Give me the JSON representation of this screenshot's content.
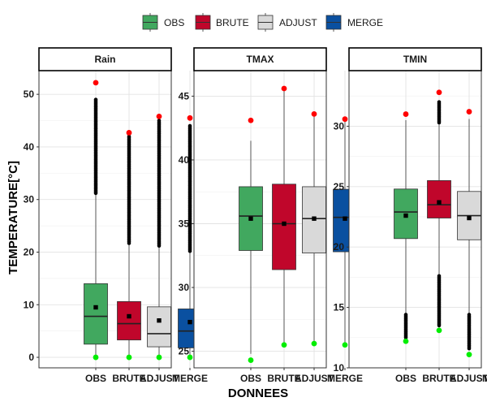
{
  "chart_data": {
    "type": "boxplot",
    "xlabel": "DONNEES",
    "ylabel": "TEMPERATURE[°C]",
    "categories": [
      "OBS",
      "BRUTE",
      "ADJUST",
      "MERGE"
    ],
    "legend": {
      "position": "top",
      "entries": [
        {
          "label": "OBS",
          "color": "#41a85f"
        },
        {
          "label": "BRUTE",
          "color": "#c0062b"
        },
        {
          "label": "ADJUST",
          "color": "#d9d9d9"
        },
        {
          "label": "MERGE",
          "color": "#0a50a0"
        }
      ]
    },
    "markers": {
      "max_color": "#ff0000",
      "min_color": "#00ee00",
      "mean_color": "#000000",
      "outlier_color": "#000000"
    },
    "grid": true,
    "panels": [
      {
        "title": "Rain",
        "ylim": [
          -2,
          54.5
        ],
        "yticks": [
          0,
          10,
          20,
          30,
          40,
          50
        ],
        "boxes": [
          {
            "name": "OBS",
            "q1": 2.5,
            "median": 7.8,
            "q3": 14.0,
            "whisker_low": 0,
            "whisker_high": 31.0,
            "mean": 9.5,
            "min": 0,
            "max": 52.2,
            "outlier_range": [
              31.2,
              49.0
            ]
          },
          {
            "name": "BRUTE",
            "q1": 3.3,
            "median": 6.4,
            "q3": 10.6,
            "whisker_low": 0,
            "whisker_high": 21.5,
            "mean": 7.8,
            "min": 0,
            "max": 42.7,
            "outlier_range": [
              21.7,
              42.0
            ]
          },
          {
            "name": "ADJUST",
            "q1": 2.0,
            "median": 4.5,
            "q3": 9.6,
            "whisker_low": 0,
            "whisker_high": 21.0,
            "mean": 7.0,
            "min": 0,
            "max": 45.8,
            "outlier_range": [
              21.2,
              45.0
            ]
          },
          {
            "name": "MERGE",
            "q1": 1.8,
            "median": 5.0,
            "q3": 9.2,
            "whisker_low": 0,
            "whisker_high": 20.0,
            "mean": 6.7,
            "min": 0,
            "max": 45.5,
            "outlier_range": [
              20.2,
              44.0
            ]
          }
        ]
      },
      {
        "title": "TMAX",
        "ylim": [
          23.7,
          47.0
        ],
        "yticks": [
          25,
          30,
          35,
          40,
          45
        ],
        "boxes": [
          {
            "name": "OBS",
            "q1": 32.9,
            "median": 35.6,
            "q3": 37.9,
            "whisker_low": 24.8,
            "whisker_high": 41.5,
            "mean": 35.4,
            "min": 24.3,
            "max": 43.1,
            "outlier_range": null
          },
          {
            "name": "BRUTE",
            "q1": 31.4,
            "median": 35.0,
            "q3": 38.1,
            "whisker_low": 25.5,
            "whisker_high": 45.5,
            "mean": 35.0,
            "min": 25.5,
            "max": 45.6,
            "outlier_range": null
          },
          {
            "name": "ADJUST",
            "q1": 32.7,
            "median": 35.4,
            "q3": 37.9,
            "whisker_low": 25.6,
            "whisker_high": 43.5,
            "mean": 35.4,
            "min": 25.6,
            "max": 43.6,
            "outlier_range": null
          },
          {
            "name": "MERGE",
            "q1": 32.8,
            "median": 35.5,
            "q3": 37.7,
            "whisker_low": 25.5,
            "whisker_high": 43.2,
            "mean": 35.4,
            "min": 25.5,
            "max": 43.2,
            "outlier_range": null
          }
        ]
      },
      {
        "title": "TMIN",
        "ylim": [
          10.0,
          34.6
        ],
        "yticks": [
          10,
          15,
          20,
          25,
          30
        ],
        "boxes": [
          {
            "name": "OBS",
            "q1": 20.7,
            "median": 22.9,
            "q3": 24.8,
            "whisker_low": 14.5,
            "whisker_high": 30.5,
            "mean": 22.6,
            "min": 12.2,
            "max": 31.0,
            "outlier_range": [
              12.5,
              14.4
            ]
          },
          {
            "name": "BRUTE",
            "q1": 22.4,
            "median": 23.5,
            "q3": 25.5,
            "whisker_low": 17.7,
            "whisker_high": 30.2,
            "mean": 23.7,
            "min": 13.1,
            "max": 32.8,
            "outlier_range": [
              13.5,
              17.6
            ],
            "outlier_range_high": [
              30.3,
              32.0
            ]
          },
          {
            "name": "ADJUST",
            "q1": 20.6,
            "median": 22.6,
            "q3": 24.6,
            "whisker_low": 14.5,
            "whisker_high": 30.6,
            "mean": 22.4,
            "min": 11.1,
            "max": 31.2,
            "outlier_range": [
              11.6,
              14.4
            ]
          },
          {
            "name": "MERGE",
            "q1": 20.7,
            "median": 22.8,
            "q3": 24.7,
            "whisker_low": 15.0,
            "whisker_high": 30.3,
            "mean": 22.5,
            "min": 11.8,
            "max": 30.4,
            "outlier_range": [
              12.0,
              14.9
            ]
          }
        ]
      }
    ]
  }
}
